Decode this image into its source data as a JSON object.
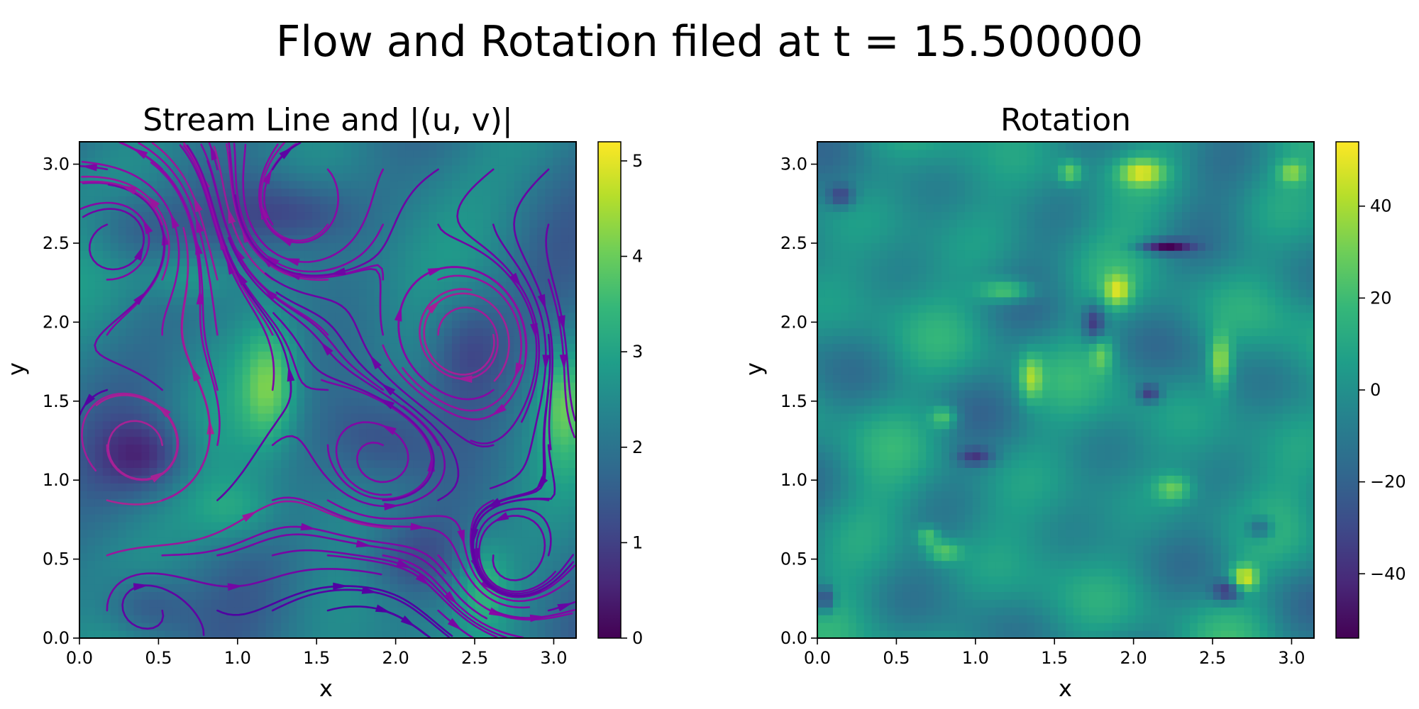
{
  "figure": {
    "title": "Flow and Rotation filed at t = 15.500000"
  },
  "chart_data": [
    {
      "type": "heatmap",
      "subtype": "streamplot-over-heatmap",
      "title": "Stream Line and |(u, v)|",
      "xlabel": "x",
      "ylabel": "y",
      "xlim": [
        0,
        3.14159
      ],
      "ylim": [
        0,
        3.14159
      ],
      "xticks": [
        "0.0",
        "0.5",
        "1.0",
        "1.5",
        "2.0",
        "2.5",
        "3.0"
      ],
      "yticks": [
        "0.0",
        "0.5",
        "1.0",
        "1.5",
        "2.0",
        "2.5",
        "3.0"
      ],
      "colormap": "viridis",
      "streamline_colormap": "plasma",
      "colorbar": {
        "range": [
          0,
          5.2
        ],
        "ticks": [
          {
            "value": 0,
            "label": "0"
          },
          {
            "value": 1,
            "label": "1"
          },
          {
            "value": 2,
            "label": "2"
          },
          {
            "value": 3,
            "label": "3"
          },
          {
            "value": 4,
            "label": "4"
          },
          {
            "value": 5,
            "label": "5"
          }
        ]
      },
      "grid": false,
      "blobs": [
        {
          "x": 0.42,
          "y": 1.15,
          "amp": -1.3,
          "sx": 0.2,
          "sy": 0.16
        },
        {
          "x": 0.3,
          "y": 2.6,
          "amp": -1.0,
          "sx": 0.22,
          "sy": 0.18
        },
        {
          "x": 1.35,
          "y": 2.7,
          "amp": -1.1,
          "sx": 0.3,
          "sy": 0.15
        },
        {
          "x": 2.45,
          "y": 1.85,
          "amp": -1.1,
          "sx": 0.18,
          "sy": 0.25
        },
        {
          "x": 2.1,
          "y": 0.5,
          "amp": -1.0,
          "sx": 0.25,
          "sy": 0.18
        },
        {
          "x": 0.4,
          "y": 0.2,
          "amp": -1.2,
          "sx": 0.2,
          "sy": 0.15
        },
        {
          "x": 1.2,
          "y": 1.6,
          "amp": 1.6,
          "sx": 0.12,
          "sy": 0.25
        },
        {
          "x": 3.05,
          "y": 1.5,
          "amp": 1.2,
          "sx": 0.1,
          "sy": 0.25
        },
        {
          "x": 0.7,
          "y": 2.3,
          "amp": 1.0,
          "sx": 0.2,
          "sy": 0.12
        },
        {
          "x": 2.55,
          "y": 0.35,
          "amp": 1.1,
          "sx": 0.12,
          "sy": 0.2
        },
        {
          "x": 1.0,
          "y": 0.8,
          "amp": 0.9,
          "sx": 0.2,
          "sy": 0.15
        },
        {
          "x": 1.9,
          "y": 1.25,
          "amp": -0.8,
          "sx": 0.25,
          "sy": 0.2
        }
      ],
      "vortices": [
        {
          "x": 0.42,
          "y": 1.15,
          "strength": 1.5
        },
        {
          "x": 2.45,
          "y": 1.9,
          "strength": -1.3
        },
        {
          "x": 1.35,
          "y": 2.7,
          "strength": -1.0
        },
        {
          "x": 1.9,
          "y": 1.1,
          "strength": 1.0
        },
        {
          "x": 2.7,
          "y": 0.45,
          "strength": 0.9
        },
        {
          "x": 0.35,
          "y": 0.25,
          "strength": -0.8
        },
        {
          "x": 0.3,
          "y": 2.55,
          "strength": 0.8
        }
      ]
    },
    {
      "type": "heatmap",
      "title": "Rotation",
      "xlabel": "x",
      "ylabel": "y",
      "xlim": [
        0,
        3.14159
      ],
      "ylim": [
        0,
        3.14159
      ],
      "xticks": [
        "0.0",
        "0.5",
        "1.0",
        "1.5",
        "2.0",
        "2.5",
        "3.0"
      ],
      "yticks": [
        "0.0",
        "0.5",
        "1.0",
        "1.5",
        "2.0",
        "2.5",
        "3.0"
      ],
      "colormap": "viridis",
      "colorbar": {
        "range": [
          -54,
          54
        ],
        "ticks": [
          {
            "value": 40,
            "label": "40"
          },
          {
            "value": 20,
            "label": "20"
          },
          {
            "value": 0,
            "label": "0"
          },
          {
            "value": -20,
            "label": "−20"
          },
          {
            "value": -40,
            "label": "−40"
          }
        ]
      },
      "grid": false,
      "blobs": [
        {
          "x": 2.05,
          "y": 2.95,
          "amp": 40,
          "sx": 0.1,
          "sy": 0.06
        },
        {
          "x": 1.2,
          "y": 2.2,
          "amp": 35,
          "sx": 0.12,
          "sy": 0.05
        },
        {
          "x": 2.55,
          "y": 1.75,
          "amp": 42,
          "sx": 0.05,
          "sy": 0.12
        },
        {
          "x": 1.9,
          "y": 2.2,
          "amp": 38,
          "sx": 0.06,
          "sy": 0.07
        },
        {
          "x": 2.7,
          "y": 0.38,
          "amp": 50,
          "sx": 0.06,
          "sy": 0.06
        },
        {
          "x": 0.8,
          "y": 0.55,
          "amp": 30,
          "sx": 0.08,
          "sy": 0.05
        },
        {
          "x": 1.35,
          "y": 1.65,
          "amp": 34,
          "sx": 0.05,
          "sy": 0.1
        },
        {
          "x": 0.8,
          "y": 1.4,
          "amp": 30,
          "sx": 0.06,
          "sy": 0.05
        },
        {
          "x": 2.25,
          "y": 0.95,
          "amp": 28,
          "sx": 0.08,
          "sy": 0.06
        },
        {
          "x": 1.6,
          "y": 2.95,
          "amp": 32,
          "sx": 0.05,
          "sy": 0.05
        },
        {
          "x": 0.7,
          "y": 0.65,
          "amp": 30,
          "sx": 0.05,
          "sy": 0.04
        },
        {
          "x": 3.0,
          "y": 2.95,
          "amp": 28,
          "sx": 0.06,
          "sy": 0.05
        },
        {
          "x": 1.8,
          "y": 1.8,
          "amp": 25,
          "sx": 0.05,
          "sy": 0.08
        },
        {
          "x": 2.2,
          "y": 2.48,
          "amp": -50,
          "sx": 0.12,
          "sy": 0.03
        },
        {
          "x": 1.75,
          "y": 2.0,
          "amp": -38,
          "sx": 0.05,
          "sy": 0.08
        },
        {
          "x": 2.1,
          "y": 1.55,
          "amp": -35,
          "sx": 0.05,
          "sy": 0.04
        },
        {
          "x": 2.6,
          "y": 0.3,
          "amp": -40,
          "sx": 0.07,
          "sy": 0.05
        },
        {
          "x": 0.05,
          "y": 0.25,
          "amp": -38,
          "sx": 0.04,
          "sy": 0.06
        },
        {
          "x": 0.15,
          "y": 2.8,
          "amp": -30,
          "sx": 0.06,
          "sy": 0.05
        },
        {
          "x": 1.0,
          "y": 1.15,
          "amp": -30,
          "sx": 0.08,
          "sy": 0.04
        },
        {
          "x": 2.8,
          "y": 0.7,
          "amp": -28,
          "sx": 0.06,
          "sy": 0.05
        }
      ]
    }
  ]
}
